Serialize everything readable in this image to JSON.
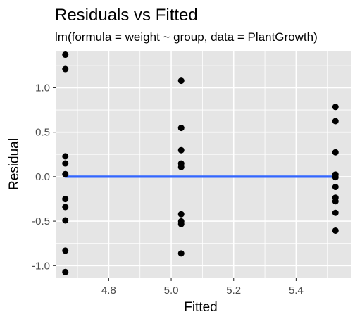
{
  "chart_data": {
    "type": "scatter",
    "title": "Residuals vs Fitted",
    "subtitle": "lm(formula = weight ~ group, data = PlantGrowth)",
    "xlabel": "Fitted",
    "ylabel": "Residual",
    "xlim": [
      4.63,
      5.575
    ],
    "ylim": [
      -1.14,
      1.415
    ],
    "x_ticks": [
      4.8,
      5.0,
      5.2,
      5.4
    ],
    "x_tick_labels": [
      "4.8",
      "5.0",
      "5.2",
      "5.4"
    ],
    "y_ticks": [
      -1.0,
      -0.5,
      0.0,
      0.5,
      1.0
    ],
    "y_tick_labels": [
      "-1.0",
      "-0.5",
      "0.0",
      "0.5",
      "1.0"
    ],
    "grid": true,
    "points": [
      {
        "x": 4.661,
        "y": 1.371
      },
      {
        "x": 4.661,
        "y": 1.209
      },
      {
        "x": 4.661,
        "y": 0.229
      },
      {
        "x": 4.661,
        "y": 0.149
      },
      {
        "x": 4.661,
        "y": 0.029
      },
      {
        "x": 4.661,
        "y": -0.251
      },
      {
        "x": 4.661,
        "y": -0.341
      },
      {
        "x": 4.661,
        "y": -0.491
      },
      {
        "x": 4.661,
        "y": -0.831
      },
      {
        "x": 4.661,
        "y": -1.071
      },
      {
        "x": 5.032,
        "y": 1.078
      },
      {
        "x": 5.032,
        "y": 0.548
      },
      {
        "x": 5.032,
        "y": 0.298
      },
      {
        "x": 5.032,
        "y": 0.148
      },
      {
        "x": 5.032,
        "y": 0.108
      },
      {
        "x": 5.032,
        "y": -0.422
      },
      {
        "x": 5.032,
        "y": -0.502
      },
      {
        "x": 5.032,
        "y": -0.532
      },
      {
        "x": 5.032,
        "y": -0.862
      },
      {
        "x": 5.526,
        "y": 0.784
      },
      {
        "x": 5.526,
        "y": 0.624
      },
      {
        "x": 5.526,
        "y": 0.274
      },
      {
        "x": 5.526,
        "y": 0.024
      },
      {
        "x": 5.526,
        "y": -0.006
      },
      {
        "x": 5.526,
        "y": -0.116
      },
      {
        "x": 5.526,
        "y": -0.236
      },
      {
        "x": 5.526,
        "y": -0.276
      },
      {
        "x": 5.526,
        "y": -0.406
      },
      {
        "x": 5.526,
        "y": -0.606
      }
    ],
    "smooth_line": {
      "x": [
        4.661,
        5.526
      ],
      "y": [
        0.0,
        0.0
      ],
      "color": "#3366FF"
    },
    "panel_background": "#E5E5E5",
    "grid_color": "#FFFFFF",
    "point_color": "#000000"
  }
}
